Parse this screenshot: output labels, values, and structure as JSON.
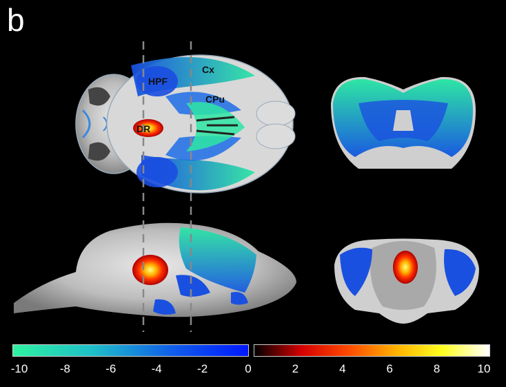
{
  "figure": {
    "panel_letter": "b"
  },
  "regions": {
    "hpf": "HPF",
    "cx": "Cx",
    "cpu": "CPu",
    "dr": "DR"
  },
  "colorbar": {
    "negative_ticks": [
      "-10",
      "-8",
      "-6",
      "-4",
      "-2",
      "0"
    ],
    "positive_ticks": [
      "2",
      "4",
      "6",
      "8",
      "10"
    ],
    "negative_colors": [
      "#2ff2a0",
      "#1fc0c8",
      "#1060e8",
      "#0018ff"
    ],
    "positive_colors": [
      "#000000",
      "#d40000",
      "#ff4a00",
      "#ffb000",
      "#ffff20",
      "#ffffff"
    ]
  }
}
